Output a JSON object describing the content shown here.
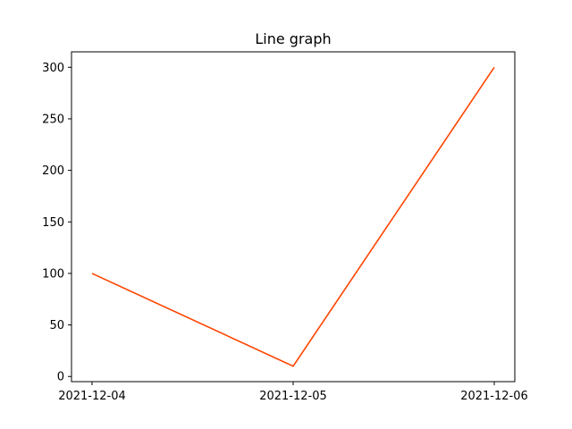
{
  "chart_data": {
    "type": "line",
    "title": "Line graph",
    "xlabel": "",
    "ylabel": "",
    "x": [
      "2021-12-04",
      "2021-12-05",
      "2021-12-06"
    ],
    "series": [
      {
        "values": [
          100,
          10,
          300
        ],
        "color": "#ff4500"
      }
    ],
    "ylim": [
      -5,
      315
    ],
    "yticks": [
      0,
      50,
      100,
      150,
      200,
      250,
      300
    ],
    "grid": false
  }
}
